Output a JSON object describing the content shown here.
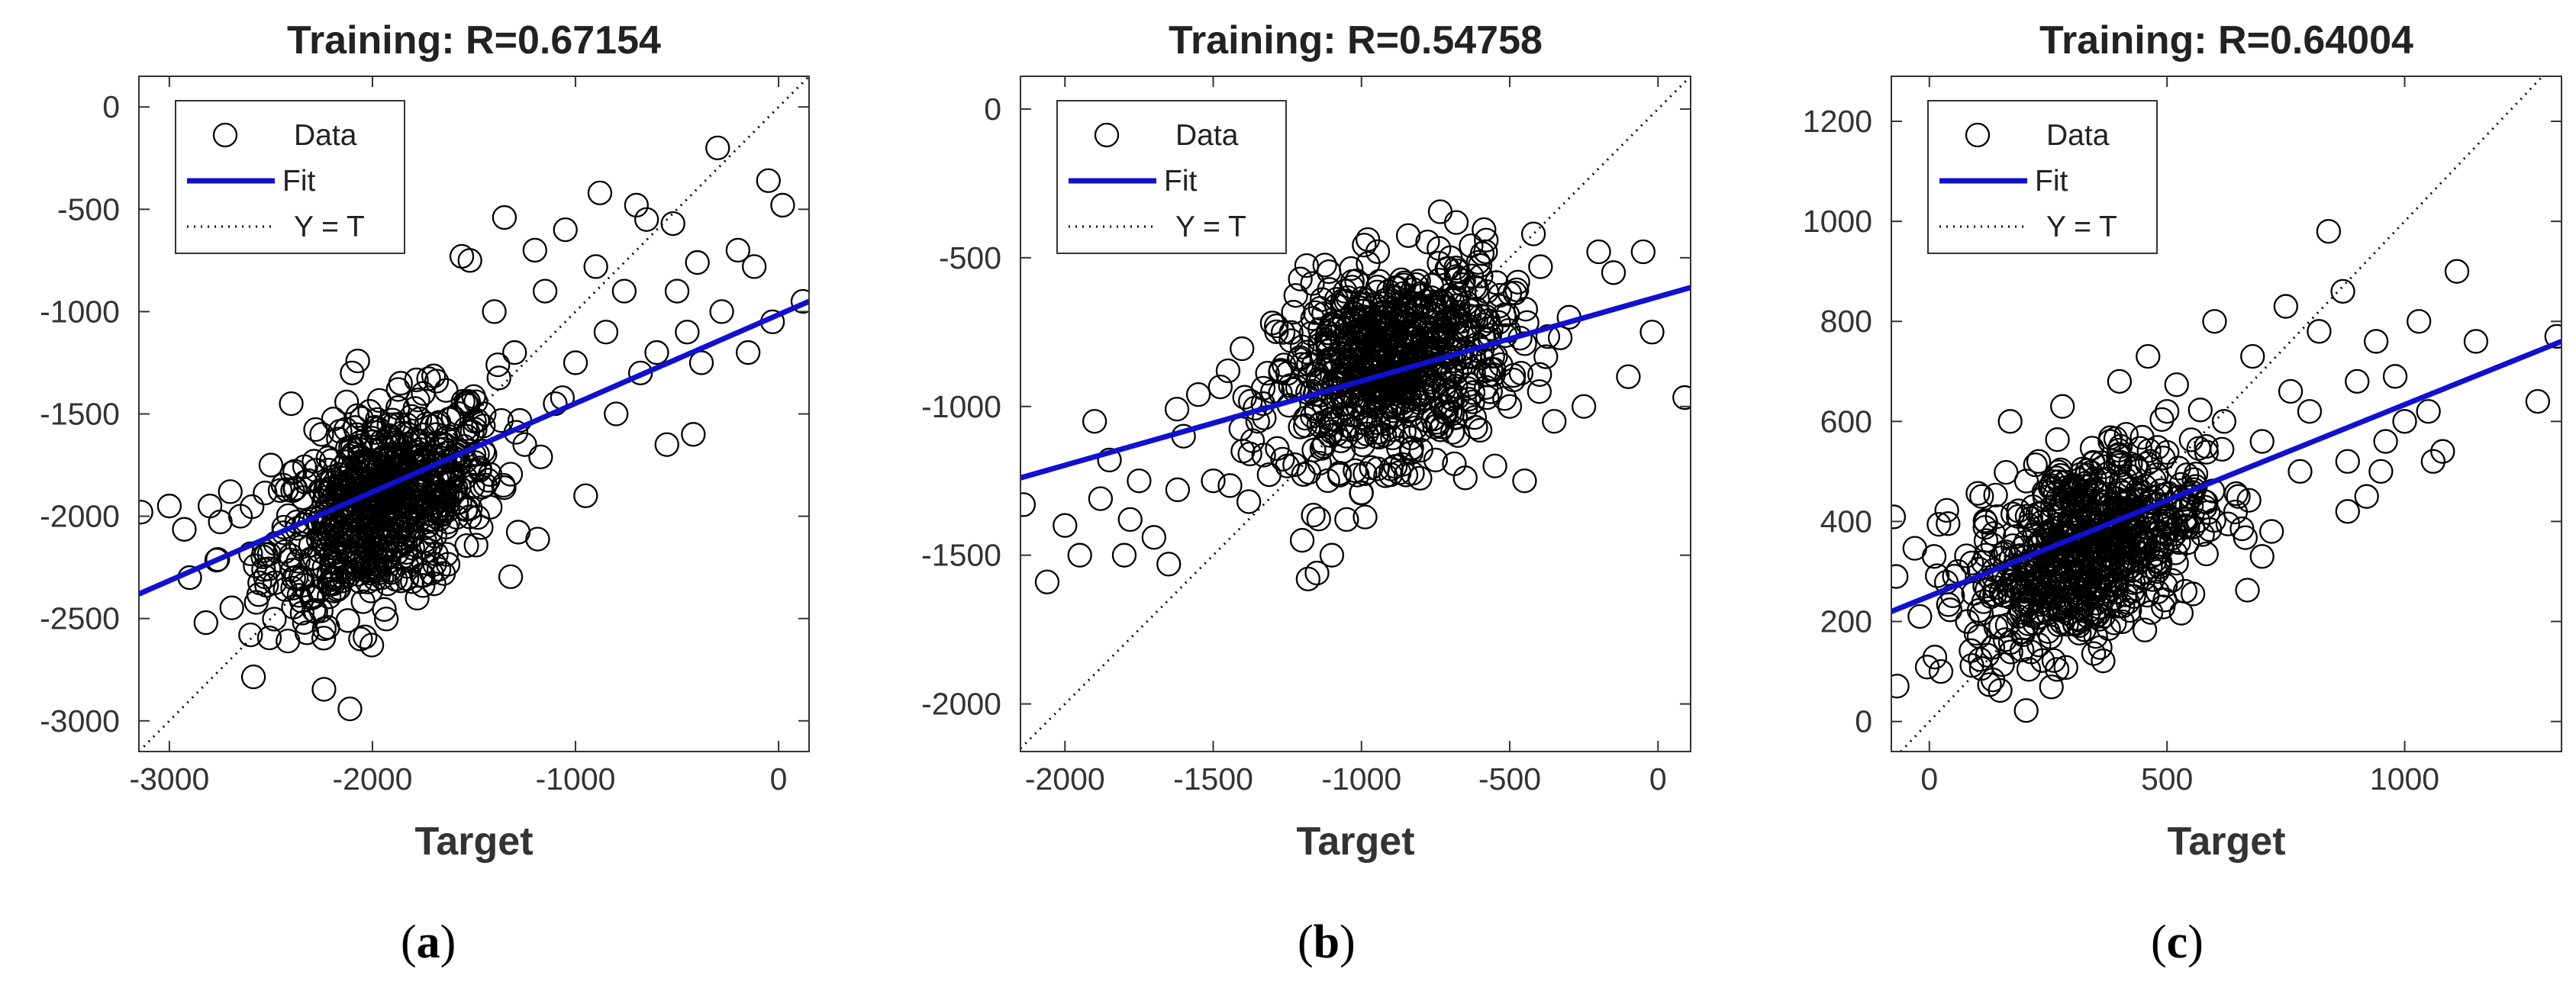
{
  "chart_data": [
    {
      "panel": "a",
      "type": "scatter",
      "title": "Training: R=0.67154",
      "xlabel": "Target",
      "ylabel": "",
      "xlim": [
        -3150,
        150
      ],
      "ylim": [
        -3150,
        150
      ],
      "xticks": [
        -3000,
        -2000,
        -1000,
        0
      ],
      "yticks": [
        0,
        -500,
        -1000,
        -1500,
        -2000,
        -2500,
        -3000
      ],
      "legend": {
        "placement": "top-left",
        "entries": [
          "Data",
          "Fit",
          "Y = T"
        ]
      },
      "colors": {
        "data": "#000000",
        "fit": "#1010d0",
        "identity": "#000000"
      },
      "fit_line": {
        "x": [
          -3150,
          150
        ],
        "y": [
          -2380,
          -950
        ]
      },
      "identity_line": true,
      "cluster": {
        "center_x": -1950,
        "center_y": -1950,
        "approx_points": 700
      },
      "points": [
        [
          -3140,
          -1980
        ],
        [
          -3000,
          -1950
        ],
        [
          -2900,
          -2300
        ],
        [
          -2820,
          -2520
        ],
        [
          -2600,
          -2580
        ],
        [
          -2800,
          -1950
        ],
        [
          -2700,
          -1880
        ],
        [
          -2650,
          -2000
        ],
        [
          -2500,
          -1750
        ],
        [
          -2400,
          -1450
        ],
        [
          -2350,
          -2150
        ],
        [
          -2300,
          -2400
        ],
        [
          -2250,
          -1600
        ],
        [
          -2200,
          -2250
        ],
        [
          -2150,
          -1900
        ],
        [
          -2100,
          -1300
        ],
        [
          -2050,
          -2100
        ],
        [
          -2000,
          -1800
        ],
        [
          -1950,
          -2000
        ],
        [
          -1900,
          -1700
        ],
        [
          -1850,
          -2050
        ],
        [
          -1800,
          -1850
        ],
        [
          -1750,
          -1400
        ],
        [
          -1700,
          -1950
        ],
        [
          -1650,
          -2280
        ],
        [
          -1600,
          -1800
        ],
        [
          -1560,
          -730
        ],
        [
          -1520,
          -750
        ],
        [
          -1500,
          -1700
        ],
        [
          -1450,
          -1500
        ],
        [
          -1400,
          -1000
        ],
        [
          -1350,
          -540
        ],
        [
          -1300,
          -1200
        ],
        [
          -1250,
          -1650
        ],
        [
          -1200,
          -700
        ],
        [
          -1150,
          -900
        ],
        [
          -1100,
          -1450
        ],
        [
          -1050,
          -600
        ],
        [
          -1000,
          -1250
        ],
        [
          -950,
          -1900
        ],
        [
          -900,
          -780
        ],
        [
          -880,
          -420
        ],
        [
          -850,
          -1100
        ],
        [
          -800,
          -1500
        ],
        [
          -760,
          -900
        ],
        [
          -700,
          -480
        ],
        [
          -680,
          -1300
        ],
        [
          -650,
          -550
        ],
        [
          -600,
          -1200
        ],
        [
          -550,
          -1650
        ],
        [
          -520,
          -570
        ],
        [
          -500,
          -900
        ],
        [
          -450,
          -1100
        ],
        [
          -420,
          -1600
        ],
        [
          -380,
          -1250
        ],
        [
          -300,
          -200
        ],
        [
          -280,
          -1000
        ],
        [
          -200,
          -700
        ],
        [
          -150,
          -1200
        ],
        [
          -120,
          -780
        ],
        [
          -50,
          -360
        ],
        [
          -30,
          -1050
        ],
        [
          20,
          -480
        ],
        [
          120,
          -950
        ],
        [
          -400,
          -760
        ]
      ]
    },
    {
      "panel": "b",
      "type": "scatter",
      "title": "Training: R=0.54758",
      "xlabel": "Target",
      "ylabel": "",
      "xlim": [
        -2150,
        110
      ],
      "ylim": [
        -2160,
        110
      ],
      "xticks": [
        -2000,
        -1500,
        -1000,
        -500,
        0
      ],
      "yticks": [
        0,
        -500,
        -1000,
        -1500,
        -2000
      ],
      "legend": {
        "placement": "top-left",
        "entries": [
          "Data",
          "Fit",
          "Y = T"
        ]
      },
      "colors": {
        "data": "#000000",
        "fit": "#1010d0",
        "identity": "#000000"
      },
      "fit_line": {
        "x": [
          -2150,
          110
        ],
        "y": [
          -1240,
          -600
        ]
      },
      "identity_line": true,
      "cluster": {
        "center_x": -900,
        "center_y": -850,
        "approx_points": 700
      },
      "points": [
        [
          -2140,
          -1330
        ],
        [
          -2060,
          -1590
        ],
        [
          -2000,
          -1400
        ],
        [
          -1950,
          -1500
        ],
        [
          -1900,
          -1050
        ],
        [
          -1880,
          -1310
        ],
        [
          -1850,
          -1180
        ],
        [
          -1800,
          -1500
        ],
        [
          -1780,
          -1380
        ],
        [
          -1750,
          -1250
        ],
        [
          -1700,
          -1440
        ],
        [
          -1650,
          -1530
        ],
        [
          -1620,
          -1280
        ],
        [
          -1600,
          -1100
        ],
        [
          -1550,
          -960
        ],
        [
          -1500,
          -1250
        ],
        [
          -1450,
          -880
        ],
        [
          -1400,
          -1150
        ],
        [
          -1380,
          -1320
        ],
        [
          -1350,
          -1050
        ],
        [
          -1300,
          -950
        ],
        [
          -1250,
          -1200
        ],
        [
          -1200,
          -1450
        ],
        [
          -1180,
          -1580
        ],
        [
          -1150,
          -1560
        ],
        [
          -1100,
          -1500
        ],
        [
          -1050,
          -1380
        ],
        [
          -1000,
          -1290
        ],
        [
          -950,
          -1100
        ],
        [
          -900,
          -1210
        ],
        [
          -850,
          -1230
        ],
        [
          -800,
          -1080
        ],
        [
          -750,
          -1180
        ],
        [
          -700,
          -950
        ],
        [
          -650,
          -1240
        ],
        [
          -600,
          -1080
        ],
        [
          -550,
          -1200
        ],
        [
          -500,
          -1000
        ],
        [
          -450,
          -1250
        ],
        [
          -420,
          -420
        ],
        [
          -400,
          -950
        ],
        [
          -350,
          -1050
        ],
        [
          -300,
          -700
        ],
        [
          -250,
          -1000
        ],
        [
          -200,
          -480
        ],
        [
          -150,
          -550
        ],
        [
          -100,
          -900
        ],
        [
          -50,
          -480
        ],
        [
          -20,
          -750
        ],
        [
          90,
          -970
        ],
        [
          -500,
          -620
        ],
        [
          -700,
          -500
        ],
        [
          -800,
          -620
        ],
        [
          -1000,
          -700
        ],
        [
          -1200,
          -800
        ]
      ]
    },
    {
      "panel": "c",
      "type": "scatter",
      "title": "Training: R=0.64004",
      "xlabel": "Target",
      "ylabel": "",
      "xlim": [
        -80,
        1330
      ],
      "ylim": [
        -60,
        1290
      ],
      "xticks": [
        0,
        500,
        1000
      ],
      "yticks": [
        0,
        200,
        400,
        600,
        800,
        1000,
        1200
      ],
      "legend": {
        "placement": "top-left",
        "entries": [
          "Data",
          "Fit",
          "Y = T"
        ]
      },
      "colors": {
        "data": "#000000",
        "fit": "#1010d0",
        "identity": "#000000"
      },
      "fit_line": {
        "x": [
          -80,
          1330
        ],
        "y": [
          220,
          760
        ]
      },
      "identity_line": true,
      "cluster": {
        "center_x": 330,
        "center_y": 350,
        "approx_points": 700
      },
      "points": [
        [
          -70,
          290
        ],
        [
          -20,
          210
        ],
        [
          10,
          330
        ],
        [
          60,
          300
        ],
        [
          80,
          200
        ],
        [
          110,
          450
        ],
        [
          130,
          250
        ],
        [
          150,
          190
        ],
        [
          170,
          600
        ],
        [
          200,
          260
        ],
        [
          230,
          520
        ],
        [
          250,
          180
        ],
        [
          280,
          630
        ],
        [
          300,
          410
        ],
        [
          330,
          270
        ],
        [
          350,
          170
        ],
        [
          380,
          560
        ],
        [
          400,
          680
        ],
        [
          430,
          250
        ],
        [
          460,
          730
        ],
        [
          480,
          300
        ],
        [
          500,
          620
        ],
        [
          530,
          420
        ],
        [
          560,
          470
        ],
        [
          600,
          800
        ],
        [
          620,
          600
        ],
        [
          650,
          450
        ],
        [
          680,
          730
        ],
        [
          700,
          560
        ],
        [
          720,
          380
        ],
        [
          750,
          830
        ],
        [
          760,
          660
        ],
        [
          780,
          500
        ],
        [
          800,
          620
        ],
        [
          820,
          780
        ],
        [
          840,
          980
        ],
        [
          870,
          860
        ],
        [
          880,
          520
        ],
        [
          900,
          680
        ],
        [
          920,
          450
        ],
        [
          940,
          760
        ],
        [
          960,
          560
        ],
        [
          980,
          690
        ],
        [
          1000,
          600
        ],
        [
          1030,
          800
        ],
        [
          1050,
          620
        ],
        [
          1080,
          540
        ],
        [
          1110,
          900
        ],
        [
          1150,
          760
        ],
        [
          1280,
          640
        ],
        [
          1320,
          770
        ],
        [
          880,
          420
        ],
        [
          700,
          330
        ],
        [
          950,
          500
        ],
        [
          1060,
          520
        ]
      ]
    }
  ],
  "captions": [
    "a",
    "b",
    "c"
  ]
}
